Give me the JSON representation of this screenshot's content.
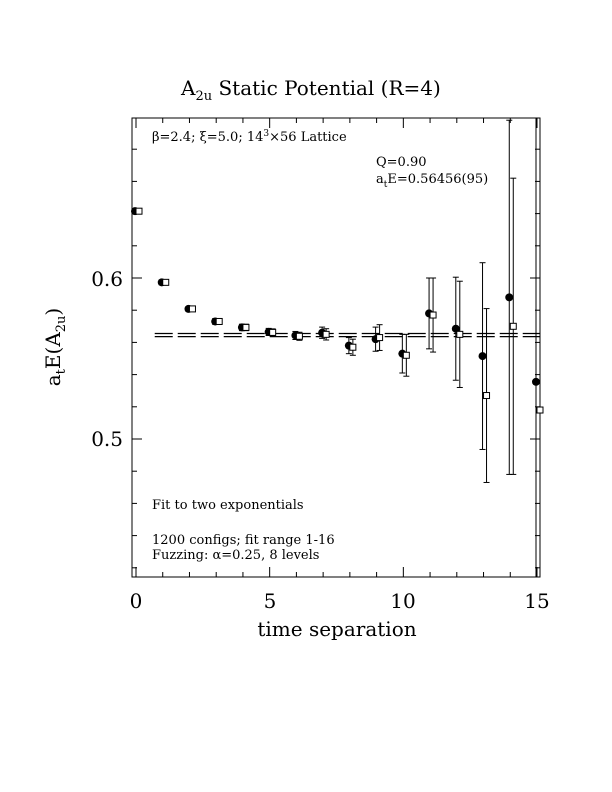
{
  "chart_data": {
    "type": "scatter",
    "title": "A",
    "title_sub": "2u",
    "title_rest": " Static Potential (R=4)",
    "xlabel": "time separation",
    "ylabel_main": "a",
    "ylabel_sub1": "t",
    "ylabel_mid": "E(A",
    "ylabel_sub2": "2u",
    "ylabel_end": ")",
    "xlim": [
      -0.1,
      15.2
    ],
    "ylim": [
      0.415,
      0.7
    ],
    "xticks": [
      0,
      5,
      10,
      15
    ],
    "xtick_labels": [
      "0",
      "5",
      "10",
      "15"
    ],
    "yticks": [
      0.5,
      0.6
    ],
    "ytick_labels": [
      "0.5",
      "0.6"
    ],
    "annotations": {
      "lattice_prefix": "β=2.4; ξ=5.0; 14",
      "lattice_sup": "3",
      "lattice_suffix": "×56 Lattice",
      "q_value": "Q=0.90",
      "fit_energy_a": "a",
      "fit_energy_sub": "t",
      "fit_energy_rest": "E=0.56456(95)",
      "fit_method": "Fit to two exponentials",
      "configs": "1200 configs; fit range 1-16",
      "fuzzing": "Fuzzing: α=0.25, 8 levels"
    },
    "fit": {
      "value": 0.56456,
      "error": 0.00095
    },
    "series": [
      {
        "marker": "filled-circle",
        "points": [
          {
            "x": 0,
            "y": 0.6415,
            "err": 0.0012
          },
          {
            "x": 1,
            "y": 0.5973,
            "err": 0.0015
          },
          {
            "x": 2,
            "y": 0.5808,
            "err": 0.0015
          },
          {
            "x": 3,
            "y": 0.573,
            "err": 0.0018
          },
          {
            "x": 4,
            "y": 0.5693,
            "err": 0.002
          },
          {
            "x": 5,
            "y": 0.5665,
            "err": 0.0022
          },
          {
            "x": 6,
            "y": 0.5643,
            "err": 0.0025
          },
          {
            "x": 7,
            "y": 0.566,
            "err": 0.0035
          },
          {
            "x": 8,
            "y": 0.558,
            "err": 0.005
          },
          {
            "x": 9,
            "y": 0.562,
            "err": 0.0075
          },
          {
            "x": 10,
            "y": 0.553,
            "err": 0.012
          },
          {
            "x": 11,
            "y": 0.578,
            "err": 0.022
          },
          {
            "x": 12,
            "y": 0.5685,
            "err": 0.032
          },
          {
            "x": 13,
            "y": 0.5515,
            "err": 0.058
          },
          {
            "x": 14,
            "y": 0.588,
            "err": 0.11
          },
          {
            "x": 15,
            "y": 0.5355,
            "err": 0.175
          }
        ]
      },
      {
        "marker": "open-square",
        "points": [
          {
            "x": 0,
            "y": 0.6415,
            "err": 0.0012
          },
          {
            "x": 1,
            "y": 0.5973,
            "err": 0.0015
          },
          {
            "x": 2,
            "y": 0.5808,
            "err": 0.0015
          },
          {
            "x": 3,
            "y": 0.573,
            "err": 0.0018
          },
          {
            "x": 4,
            "y": 0.5693,
            "err": 0.002
          },
          {
            "x": 5,
            "y": 0.5662,
            "err": 0.0022
          },
          {
            "x": 6,
            "y": 0.5638,
            "err": 0.0025
          },
          {
            "x": 7,
            "y": 0.565,
            "err": 0.0035
          },
          {
            "x": 8,
            "y": 0.557,
            "err": 0.005
          },
          {
            "x": 9,
            "y": 0.563,
            "err": 0.008
          },
          {
            "x": 10,
            "y": 0.552,
            "err": 0.013
          },
          {
            "x": 11,
            "y": 0.577,
            "err": 0.023
          },
          {
            "x": 12,
            "y": 0.565,
            "err": 0.033
          },
          {
            "x": 13,
            "y": 0.527,
            "err": 0.054
          },
          {
            "x": 14,
            "y": 0.57,
            "err": 0.092
          },
          {
            "x": 15,
            "y": 0.518,
            "err": 0.2
          }
        ]
      }
    ]
  }
}
